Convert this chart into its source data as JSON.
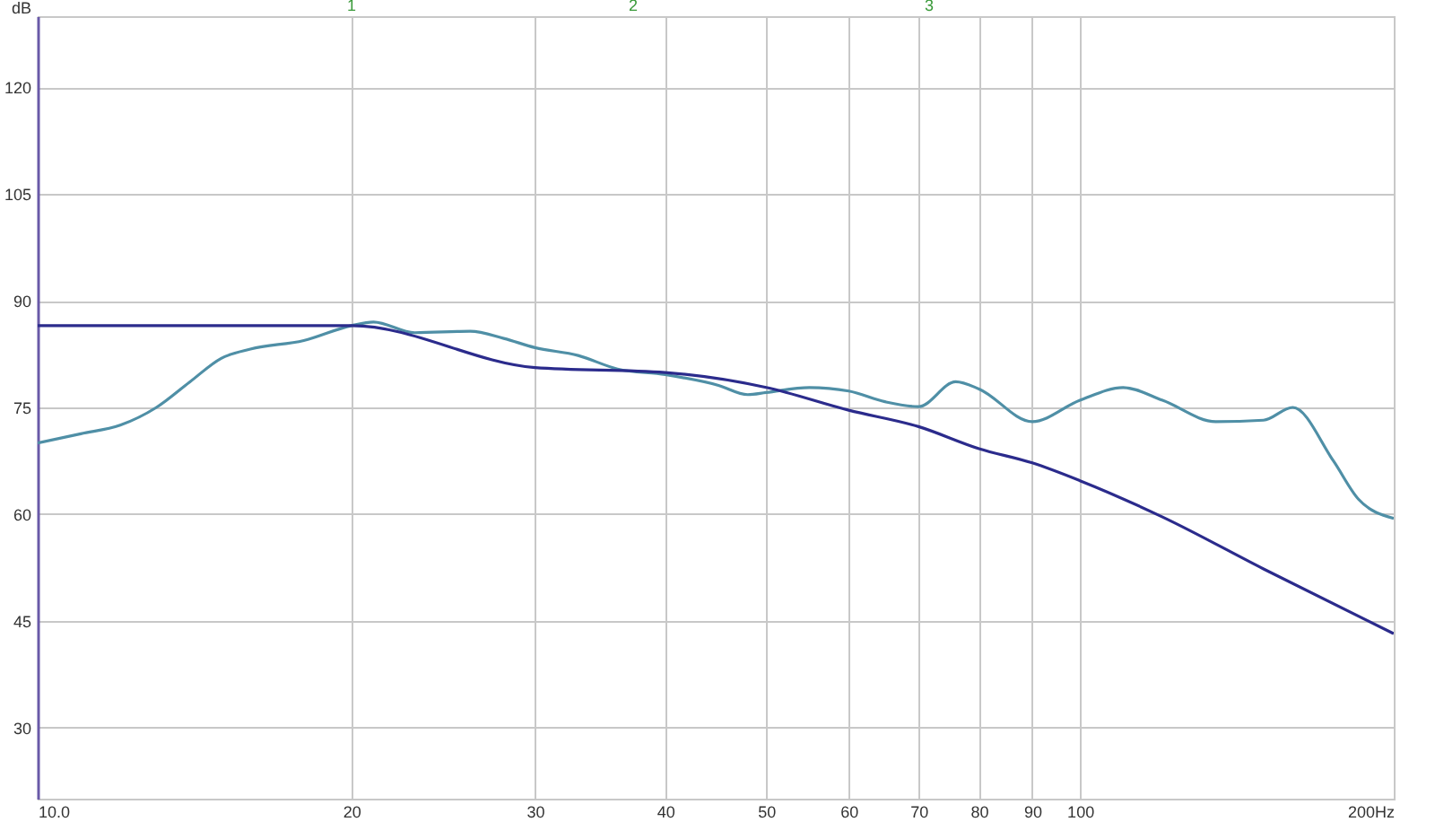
{
  "chart_data": {
    "type": "line",
    "ylabel": "dB",
    "log": "x",
    "grid": true,
    "xlim": [
      10,
      200
    ],
    "xticks": [
      {
        "value": 10,
        "label": "10.0"
      },
      20,
      30,
      40,
      50,
      60,
      70,
      80,
      90,
      100,
      {
        "value": 200,
        "label": "200Hz"
      }
    ],
    "ylim": [
      20,
      130
    ],
    "yticks": [
      30,
      45,
      60,
      75,
      90,
      105,
      120
    ],
    "annotations": [
      "1",
      "2",
      "3"
    ],
    "series": [
      {
        "color": "#4f8fa6",
        "x": [
          10,
          11,
          12,
          13,
          14,
          15,
          16,
          18,
          20,
          21,
          23,
          26,
          28,
          30,
          33,
          36,
          40,
          45,
          48,
          50,
          55,
          60,
          65,
          70,
          76,
          80,
          90,
          100,
          110,
          120,
          135,
          150,
          160,
          175,
          185,
          200
        ],
        "values": [
          70.0,
          71.3,
          72.5,
          75.0,
          78.6,
          81.9,
          83.2,
          84.4,
          86.5,
          87.0,
          85.5,
          85.7,
          84.7,
          83.4,
          82.3,
          80.4,
          79.6,
          78.1,
          76.8,
          77.1,
          77.8,
          77.3,
          75.8,
          75.1,
          78.6,
          77.6,
          73.0,
          76.0,
          77.8,
          76.0,
          73.0,
          73.2,
          75.0,
          67.5,
          62.1,
          59.4
        ]
      },
      {
        "color": "#2b2b8c",
        "x": [
          10,
          20,
          30,
          40,
          50,
          60,
          70,
          80,
          90,
          100,
          120,
          150,
          200
        ],
        "values": [
          86.5,
          86.5,
          80.6,
          79.9,
          77.8,
          74.6,
          72.3,
          69.2,
          67.2,
          64.7,
          59.6,
          52.3,
          43.2
        ]
      }
    ]
  }
}
